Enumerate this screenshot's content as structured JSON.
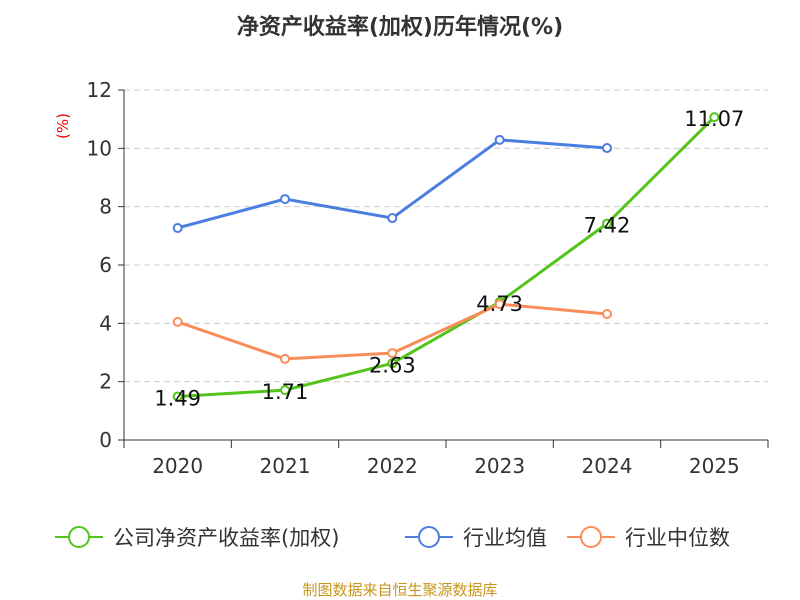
{
  "chart_data": {
    "type": "line",
    "title": "净资产收益率(加权)历年情况(%)",
    "ylabel": "(%)",
    "xlabel": "",
    "categories": [
      "2020",
      "2021",
      "2022",
      "2023",
      "2024",
      "2025"
    ],
    "ylim": [
      0,
      12
    ],
    "yticks": [
      "0",
      "2",
      "4",
      "6",
      "8",
      "10",
      "12"
    ],
    "grid": true,
    "legend_position": "bottom",
    "series": [
      {
        "name": "公司净资产收益率(加权)",
        "color": "#52c41a",
        "values": [
          1.49,
          1.71,
          2.63,
          4.73,
          7.42,
          11.07
        ],
        "labels": [
          "1.49",
          "1.71",
          "2.63",
          "4.73",
          "7.42",
          "11.07"
        ]
      },
      {
        "name": "行业均值",
        "color": "#4a7ee0",
        "values": [
          7.27,
          8.26,
          7.61,
          10.29,
          10.01,
          null
        ]
      },
      {
        "name": "行业中位数",
        "color": "#fa8c5a",
        "values": [
          4.05,
          2.78,
          2.98,
          4.66,
          4.32,
          null
        ]
      }
    ]
  },
  "footer": "制图数据来自恒生聚源数据库"
}
